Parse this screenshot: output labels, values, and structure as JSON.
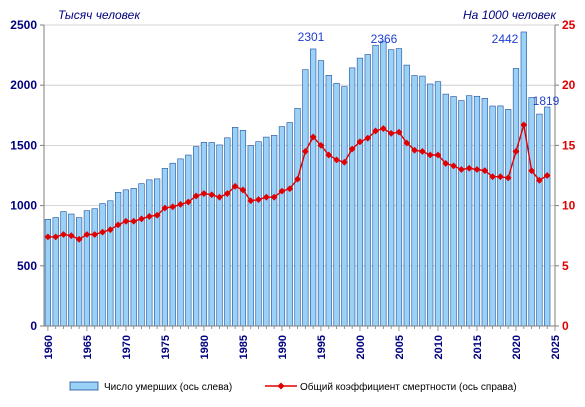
{
  "chart_data": {
    "type": "bar",
    "title": "",
    "left_axis_label": "Тысяч человек",
    "right_axis_label": "На 1000 человек",
    "ylim_left": [
      0,
      2500
    ],
    "yticks_left": [
      0,
      500,
      1000,
      1500,
      2000,
      2500
    ],
    "ylim_right": [
      0,
      25
    ],
    "yticks_right": [
      0,
      5,
      10,
      15,
      20,
      25
    ],
    "xlim": [
      1959.5,
      2025
    ],
    "xticks": [
      1960,
      1965,
      1970,
      1975,
      1980,
      1985,
      1990,
      1995,
      2000,
      2005,
      2010,
      2015,
      2020,
      2025
    ],
    "grid": "horizontal",
    "legend_position": "bottom",
    "bar_color": "#9ad1f7",
    "bar_border": "#1f4e9c",
    "line_color": "#e00000",
    "years": [
      1960,
      1961,
      1962,
      1963,
      1964,
      1965,
      1966,
      1967,
      1968,
      1969,
      1970,
      1971,
      1972,
      1973,
      1974,
      1975,
      1976,
      1977,
      1978,
      1979,
      1980,
      1981,
      1982,
      1983,
      1984,
      1985,
      1986,
      1987,
      1988,
      1989,
      1990,
      1991,
      1992,
      1993,
      1994,
      1995,
      1996,
      1997,
      1998,
      1999,
      2000,
      2001,
      2002,
      2003,
      2004,
      2005,
      2006,
      2007,
      2008,
      2009,
      2010,
      2011,
      2012,
      2013,
      2014,
      2015,
      2016,
      2017,
      2018,
      2019,
      2020,
      2021,
      2022,
      2023,
      2024
    ],
    "series": [
      {
        "name": "Число  умерших (ось слева)",
        "type": "bar",
        "axis": "left",
        "values": [
          886,
          901,
          950,
          930,
          900,
          958,
          974,
          1017,
          1040,
          1110,
          1131,
          1143,
          1182,
          1214,
          1222,
          1309,
          1352,
          1388,
          1420,
          1490,
          1526,
          1524,
          1504,
          1563,
          1650,
          1625,
          1498,
          1531,
          1569,
          1583,
          1656,
          1690,
          1807,
          2129,
          2301,
          2204,
          2082,
          2015,
          1988,
          2144,
          2225,
          2255,
          2332,
          2366,
          2295,
          2304,
          2167,
          2080,
          2076,
          2010,
          2029,
          1926,
          1906,
          1872,
          1913,
          1908,
          1891,
          1827,
          1828,
          1799,
          2139,
          2442,
          1898,
          1760,
          1819
        ]
      },
      {
        "name": "Общий  коэффициент  смертности (ось справа)",
        "type": "line",
        "axis": "right",
        "values": [
          7.4,
          7.4,
          7.6,
          7.5,
          7.2,
          7.6,
          7.6,
          7.8,
          8.0,
          8.4,
          8.7,
          8.7,
          8.9,
          9.1,
          9.2,
          9.8,
          9.9,
          10.1,
          10.3,
          10.8,
          11.0,
          10.9,
          10.7,
          11.0,
          11.6,
          11.3,
          10.4,
          10.5,
          10.7,
          10.7,
          11.2,
          11.4,
          12.2,
          14.5,
          15.7,
          15.0,
          14.2,
          13.8,
          13.6,
          14.7,
          15.3,
          15.6,
          16.2,
          16.4,
          16.0,
          16.1,
          15.2,
          14.6,
          14.5,
          14.2,
          14.2,
          13.5,
          13.3,
          13.0,
          13.1,
          13.0,
          12.9,
          12.4,
          12.4,
          12.3,
          14.5,
          16.7,
          12.9,
          12.1,
          12.5
        ]
      }
    ],
    "annotations": [
      "2301",
      "2366",
      "2442",
      "1819"
    ]
  }
}
